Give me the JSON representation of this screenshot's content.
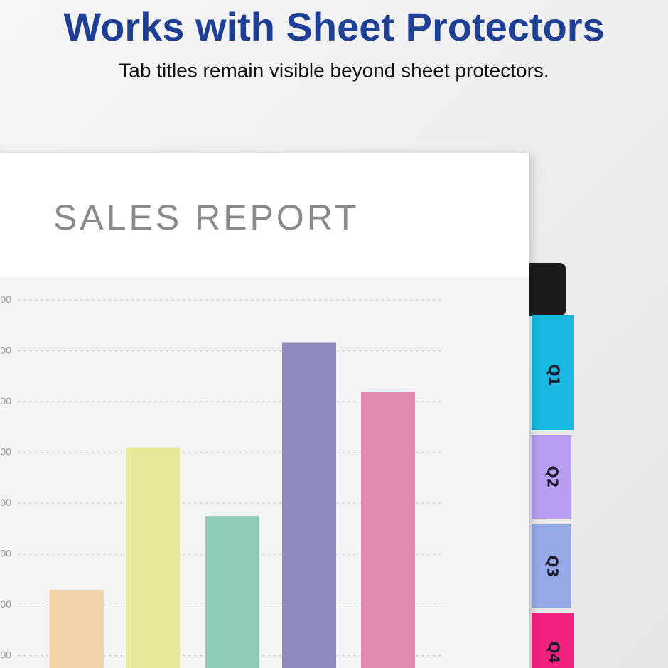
{
  "header": {
    "title": "Works with Sheet Protectors",
    "subtitle": "Tab titles remain visible beyond sheet protectors."
  },
  "report_title": "SALES REPORT",
  "chart_data": {
    "type": "bar",
    "categories": [
      null,
      null,
      null,
      null,
      null
    ],
    "values": [
      2.3,
      5.1,
      3.75,
      7.17,
      6.2
    ],
    "colors": [
      "#f4d3a9",
      "#e9e899",
      "#91cdb9",
      "#8f8bbf",
      "#e18bb0"
    ],
    "ylim": [
      0.76,
      8.45
    ],
    "yticks": [
      {
        "value": 1,
        "label": "00"
      },
      {
        "value": 2,
        "label": "00"
      },
      {
        "value": 3,
        "label": "00"
      },
      {
        "value": 4,
        "label": "00"
      },
      {
        "value": 5,
        "label": "00"
      },
      {
        "value": 6,
        "label": "00"
      },
      {
        "value": 7,
        "label": "00"
      },
      {
        "value": 8,
        "label": "00"
      }
    ],
    "grid": true
  },
  "tabs": [
    "Q1",
    "Q2",
    "Q3",
    "Q4"
  ]
}
